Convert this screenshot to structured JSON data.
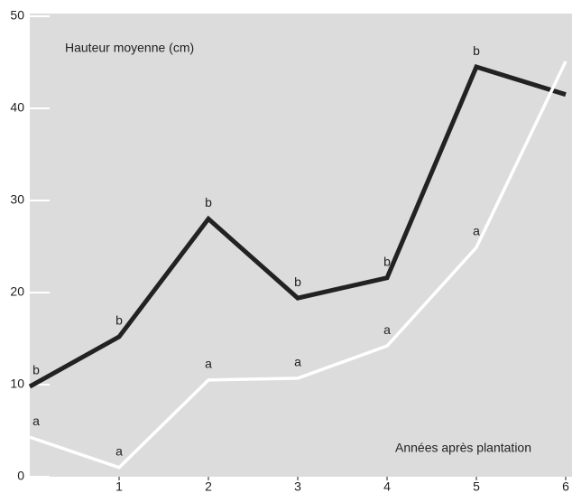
{
  "chart_data": {
    "type": "line",
    "y_label": "Hauteur moyenne (cm)",
    "x_label": "Années après plantation",
    "x": [
      0,
      1,
      2,
      3,
      4,
      5,
      6
    ],
    "xlim": [
      0,
      6
    ],
    "xticks": [
      1,
      2,
      3,
      4,
      5,
      6
    ],
    "ylim": [
      0,
      50
    ],
    "yticks": [
      0,
      10,
      20,
      30,
      40,
      50
    ],
    "background": "#dcdcdc",
    "series": [
      {
        "color": "#222222",
        "values": [
          9.8,
          15.2,
          28.0,
          19.4,
          21.6,
          44.5,
          41.5
        ],
        "point_labels": [
          "b",
          "b",
          "b",
          "b",
          "b",
          "b",
          null
        ]
      },
      {
        "color": "#ffffff",
        "values": [
          4.3,
          1.0,
          10.5,
          10.7,
          14.2,
          24.9,
          45.1
        ],
        "point_labels": [
          "a",
          "a",
          "a",
          "a",
          "a",
          "a",
          null
        ]
      }
    ]
  }
}
